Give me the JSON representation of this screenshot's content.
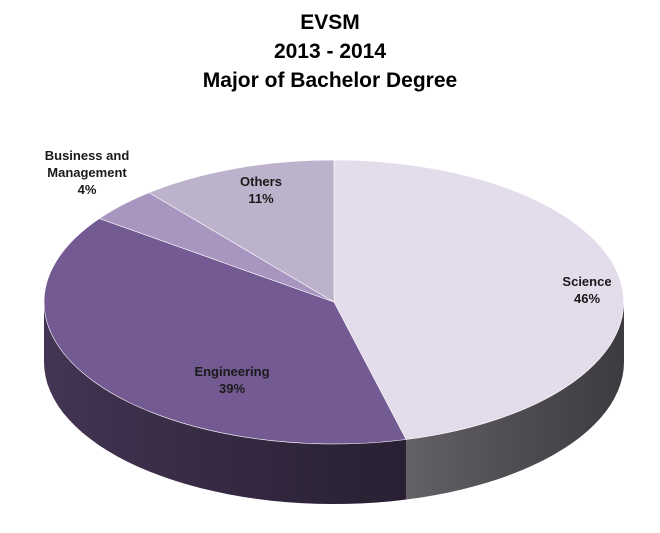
{
  "title_lines": [
    "EVSM",
    "2013 - 2014",
    "Major of Bachelor Degree"
  ],
  "chart_data": {
    "type": "pie",
    "title": "EVSM 2013 - 2014 Major of Bachelor Degree",
    "categories": [
      "Science",
      "Engineering",
      "Business and Management",
      "Others"
    ],
    "values": [
      46,
      39,
      4,
      11
    ],
    "labels": [
      {
        "lines": [
          "Science",
          "46%"
        ]
      },
      {
        "lines": [
          "Engineering",
          "39%"
        ]
      },
      {
        "lines": [
          "Business and",
          "Management",
          "4%"
        ]
      },
      {
        "lines": [
          "Others",
          "11%"
        ]
      }
    ],
    "colors": [
      "#e3dcea",
      "#735a93",
      "#a896c0",
      "#bcb2cb"
    ],
    "side_colors": [
      "#6e6b72",
      "#4a3a5c",
      "#6a5a80",
      "#7a7288"
    ],
    "3d": true,
    "legend": "none"
  }
}
